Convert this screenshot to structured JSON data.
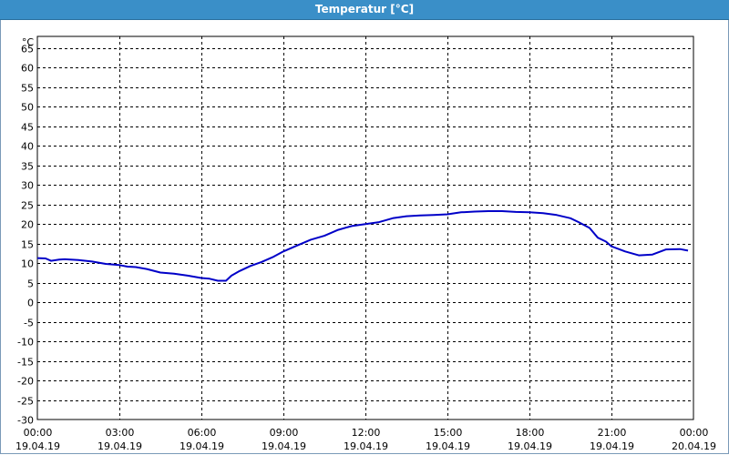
{
  "window": {
    "title": "Temperatur [°C]"
  },
  "chart_data": {
    "type": "line",
    "title": "Temperatur [°C]",
    "ylabel": "°C",
    "ylim": [
      -30,
      68
    ],
    "yticks": [
      65,
      60,
      55,
      50,
      45,
      40,
      35,
      30,
      25,
      20,
      15,
      10,
      5,
      0,
      -5,
      -10,
      -15,
      -20,
      -25,
      -30
    ],
    "xlim": [
      0,
      24
    ],
    "xticks": [
      {
        "hour": 0,
        "time": "00:00",
        "date": "19.04.19"
      },
      {
        "hour": 3,
        "time": "03:00",
        "date": "19.04.19"
      },
      {
        "hour": 6,
        "time": "06:00",
        "date": "19.04.19"
      },
      {
        "hour": 9,
        "time": "09:00",
        "date": "19.04.19"
      },
      {
        "hour": 12,
        "time": "12:00",
        "date": "19.04.19"
      },
      {
        "hour": 15,
        "time": "15:00",
        "date": "19.04.19"
      },
      {
        "hour": 18,
        "time": "18:00",
        "date": "19.04.19"
      },
      {
        "hour": 21,
        "time": "21:00",
        "date": "19.04.19"
      },
      {
        "hour": 24,
        "time": "00:00",
        "date": "20.04.19"
      }
    ],
    "grid": true,
    "series": [
      {
        "color": "#0000c8",
        "x": [
          0,
          0.3,
          0.5,
          0.8,
          1.0,
          1.5,
          2.0,
          2.5,
          3.0,
          3.3,
          3.6,
          4.0,
          4.5,
          5.0,
          5.5,
          6.0,
          6.3,
          6.6,
          6.9,
          7.1,
          7.4,
          7.8,
          8.2,
          8.6,
          9.0,
          9.5,
          10.0,
          10.5,
          11.0,
          11.5,
          12.0,
          12.5,
          13.0,
          13.5,
          14.0,
          14.5,
          15.0,
          15.5,
          16.0,
          16.5,
          17.0,
          17.5,
          18.0,
          18.5,
          19.0,
          19.5,
          19.8,
          20.2,
          20.5,
          20.8,
          21.0,
          21.5,
          22.0,
          22.5,
          23.0,
          23.5,
          23.8
        ],
        "values": [
          11.3,
          11.2,
          10.6,
          10.9,
          11.0,
          10.8,
          10.4,
          9.8,
          9.5,
          9.1,
          9.0,
          8.5,
          7.6,
          7.3,
          6.8,
          6.2,
          6.0,
          5.5,
          5.5,
          6.8,
          8.0,
          9.3,
          10.3,
          11.5,
          13.0,
          14.5,
          16.0,
          17.0,
          18.5,
          19.5,
          20.0,
          20.5,
          21.5,
          22.0,
          22.2,
          22.3,
          22.5,
          23.0,
          23.2,
          23.3,
          23.3,
          23.1,
          23.0,
          22.8,
          22.3,
          21.5,
          20.5,
          19.0,
          16.5,
          15.5,
          14.3,
          13.0,
          12.0,
          12.2,
          13.5,
          13.6,
          13.2
        ]
      }
    ]
  }
}
